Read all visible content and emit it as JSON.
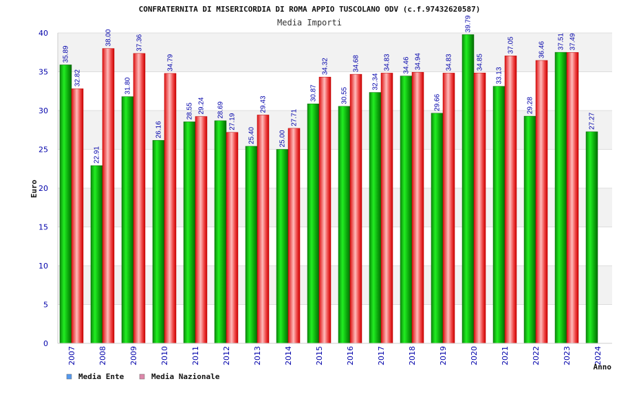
{
  "chart_data": {
    "type": "bar",
    "title": "CONFRATERNITA DI MISERICORDIA DI ROMA APPIO TUSCOLANO ODV (c.f.97432620587)",
    "subtitle": "Media Importi",
    "xlabel": "Anno",
    "ylabel": "Euro",
    "ylim": [
      0,
      40
    ],
    "yticks": [
      "0",
      "5",
      "10",
      "15",
      "20",
      "25",
      "30",
      "35",
      "40"
    ],
    "categories": [
      "2007",
      "2008",
      "2009",
      "2010",
      "2011",
      "2012",
      "2013",
      "2014",
      "2015",
      "2016",
      "2017",
      "2018",
      "2019",
      "2020",
      "2021",
      "2022",
      "2023",
      "2024"
    ],
    "series": [
      {
        "name": "Media Ente",
        "color": "#22aa22",
        "values": [
          35.89,
          22.91,
          31.8,
          26.16,
          28.55,
          28.69,
          25.4,
          25.0,
          30.87,
          30.55,
          32.34,
          34.46,
          29.66,
          39.79,
          33.13,
          29.28,
          37.51,
          27.27
        ],
        "labels": [
          "35.89",
          "22.91",
          "31.80",
          "26.16",
          "28.55",
          "28.69",
          "25.40",
          "25.00",
          "30.87",
          "30.55",
          "32.34",
          "34.46",
          "29.66",
          "39.79",
          "33.13",
          "29.28",
          "37.51",
          "27.27"
        ]
      },
      {
        "name": "Media Nazionale",
        "color": "#ee3333",
        "values": [
          32.82,
          38.0,
          37.36,
          34.79,
          29.24,
          27.19,
          29.43,
          27.71,
          34.32,
          34.68,
          34.83,
          34.94,
          34.83,
          34.85,
          37.05,
          36.46,
          37.49,
          null
        ],
        "labels": [
          "32.82",
          "38.00",
          "37.36",
          "34.79",
          "29.24",
          "27.19",
          "29.43",
          "27.71",
          "34.32",
          "34.68",
          "34.83",
          "34.94",
          "34.83",
          "34.85",
          "37.05",
          "36.46",
          "37.49",
          null
        ]
      }
    ],
    "legend": [
      {
        "label": "Media Ente",
        "color": "#5599ee"
      },
      {
        "label": "Media Nazionale",
        "color": "#dd88aa"
      }
    ],
    "grid": true,
    "legend_position": "bottom-left"
  }
}
